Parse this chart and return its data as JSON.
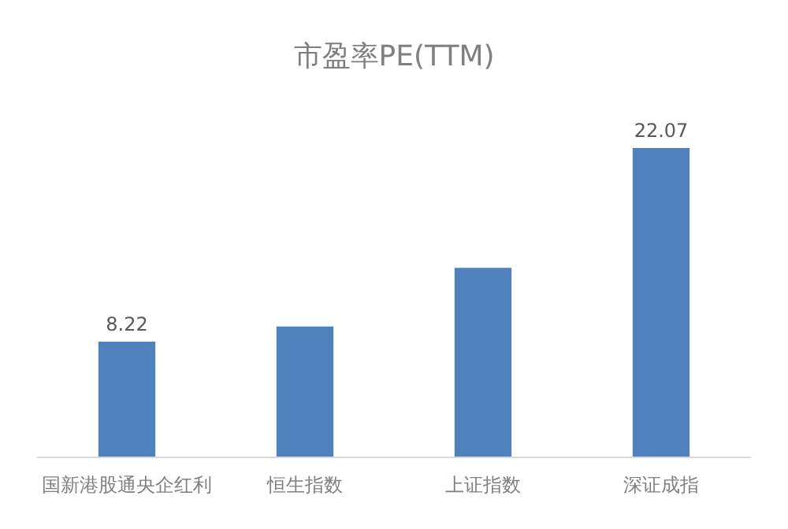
{
  "chart_data": {
    "type": "bar",
    "title": "市盈率PE(TTM)",
    "categories": [
      "国新港股通央企红利",
      "恒生指数",
      "上证指数",
      "深证成指"
    ],
    "values": [
      8.22,
      9.3,
      13.5,
      22.07
    ],
    "value_labels": [
      "8.22",
      null,
      null,
      "22.07"
    ],
    "color": "#4f81bd"
  }
}
